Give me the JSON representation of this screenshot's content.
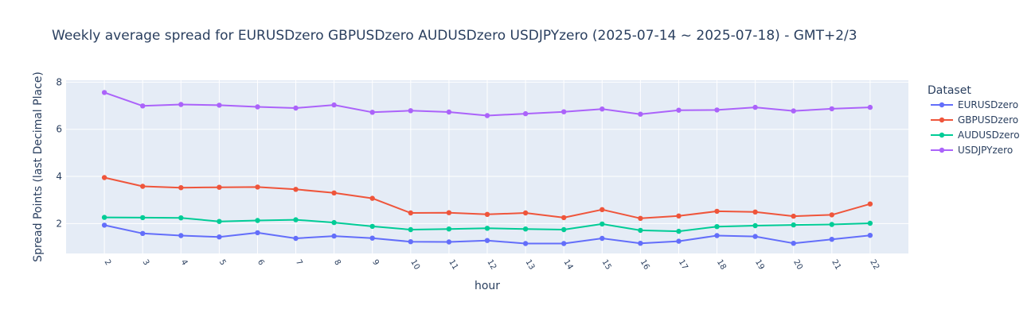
{
  "chart_data": {
    "type": "line",
    "title": "Weekly average spread for  EURUSDzero GBPUSDzero AUDUSDzero USDJPYzero (2025-07-14 ~ 2025-07-18) - GMT+2/3",
    "xlabel": "hour",
    "ylabel": "Spread Points (last Decimal Place)",
    "x": [
      2,
      3,
      4,
      5,
      6,
      7,
      8,
      9,
      10,
      11,
      12,
      13,
      14,
      15,
      16,
      17,
      18,
      19,
      20,
      21,
      22
    ],
    "x_ticks": [
      "2",
      "3",
      "4",
      "5",
      "6",
      "7",
      "8",
      "9",
      "10",
      "11",
      "12",
      "13",
      "14",
      "15",
      "16",
      "17",
      "18",
      "19",
      "20",
      "21",
      "22"
    ],
    "xlim": [
      1,
      23
    ],
    "ylim": [
      0.73,
      8.08
    ],
    "y_ticks": [
      "2",
      "4",
      "6",
      "8"
    ],
    "grid": true,
    "legend": {
      "title": "Dataset",
      "placement": "right"
    },
    "series": [
      {
        "name": "EURUSDzero",
        "color": "#636efa",
        "values": [
          1.93,
          1.58,
          1.49,
          1.43,
          1.61,
          1.37,
          1.47,
          1.38,
          1.23,
          1.22,
          1.28,
          1.15,
          1.15,
          1.37,
          1.16,
          1.25,
          1.49,
          1.45,
          1.16,
          1.33,
          1.5
        ]
      },
      {
        "name": "GBPUSDzero",
        "color": "#ef553b",
        "values": [
          3.95,
          3.58,
          3.52,
          3.54,
          3.55,
          3.45,
          3.3,
          3.07,
          2.45,
          2.46,
          2.39,
          2.45,
          2.25,
          2.59,
          2.22,
          2.32,
          2.52,
          2.49,
          2.31,
          2.37,
          2.83
        ]
      },
      {
        "name": "AUDUSDzero",
        "color": "#00cc96",
        "values": [
          2.26,
          2.25,
          2.24,
          2.09,
          2.13,
          2.16,
          2.04,
          1.88,
          1.74,
          1.77,
          1.8,
          1.77,
          1.74,
          1.98,
          1.71,
          1.67,
          1.87,
          1.91,
          1.94,
          1.96,
          2.01
        ]
      },
      {
        "name": "USDJPYzero",
        "color": "#ab63fa",
        "values": [
          7.56,
          6.99,
          7.05,
          7.02,
          6.95,
          6.9,
          7.03,
          6.72,
          6.79,
          6.73,
          6.58,
          6.66,
          6.74,
          6.86,
          6.64,
          6.81,
          6.82,
          6.93,
          6.78,
          6.87,
          6.93
        ]
      }
    ]
  }
}
